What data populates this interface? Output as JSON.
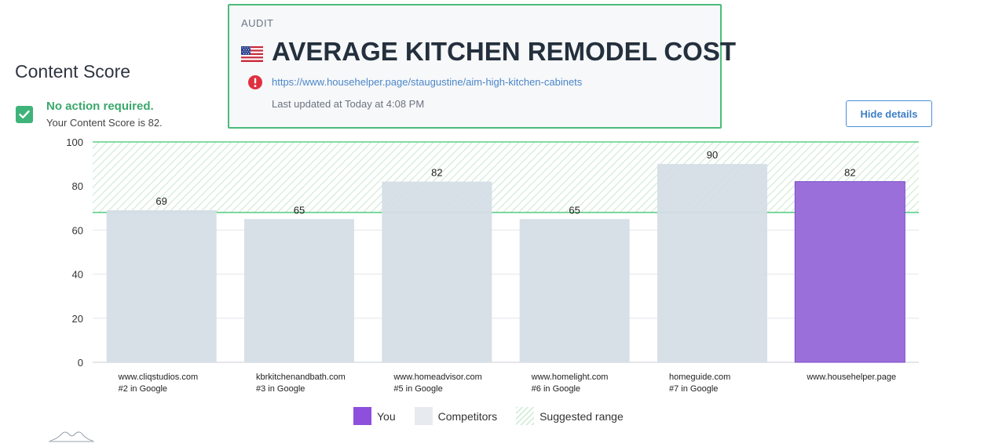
{
  "header": {
    "content_score_title": "Content Score",
    "status_title": "No action required.",
    "status_sub": "Your Content Score is 82."
  },
  "audit": {
    "label": "AUDIT",
    "title": "AVERAGE KITCHEN REMODEL COST",
    "url": "https://www.househelper.page/staugustine/aim-high-kitchen-cabinets",
    "updated": "Last updated at Today at 4:08 PM",
    "flag_icon": "us-flag-icon",
    "alert_icon": "error-alert-icon"
  },
  "toolbar": {
    "hide_details_label": "Hide details"
  },
  "colors": {
    "you": "#9b6fd9",
    "you_border": "#7a4cc9",
    "competitor": "#d5dde6",
    "range_line": "#5fcf85",
    "range_hatch": "#cde9d4",
    "accent": "#4cbc7a"
  },
  "chart_data": {
    "type": "bar",
    "categories": [
      "www.cliqstudios.com",
      "kbrkitchenandbath.com",
      "www.homeadvisor.com",
      "www.homelight.com",
      "homeguide.com",
      "www.househelper.page"
    ],
    "sublabels": [
      "#2 in Google",
      "#3 in Google",
      "#5 in Google",
      "#6 in Google",
      "#7 in Google",
      ""
    ],
    "values": [
      69,
      65,
      82,
      65,
      90,
      82
    ],
    "kinds": [
      "competitor",
      "competitor",
      "competitor",
      "competitor",
      "competitor",
      "you"
    ],
    "ylim": [
      0,
      100
    ],
    "yticks": [
      0,
      20,
      40,
      60,
      80,
      100
    ],
    "suggested_range": [
      68,
      100
    ],
    "grid": true,
    "legend": [
      {
        "key": "you",
        "label": "You"
      },
      {
        "key": "competitor",
        "label": "Competitors"
      },
      {
        "key": "range",
        "label": "Suggested range"
      }
    ]
  }
}
